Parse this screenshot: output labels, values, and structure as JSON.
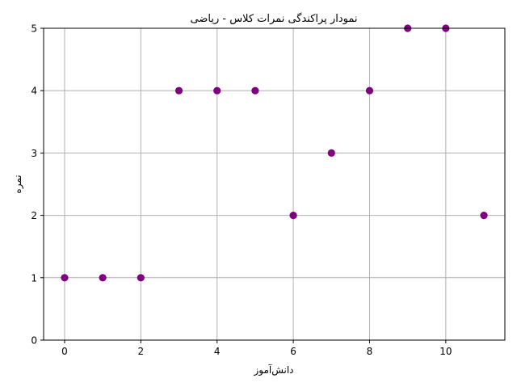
{
  "chart_data": {
    "type": "scatter",
    "title": "نمودار پراکندگی نمرات کلاس - ریاضی",
    "xlabel": "دانش‌آموز",
    "ylabel": "نمره",
    "x": [
      0,
      1,
      2,
      3,
      4,
      5,
      6,
      7,
      8,
      9,
      10,
      11
    ],
    "y": [
      1,
      1,
      1,
      4,
      4,
      4,
      2,
      3,
      4,
      5,
      5,
      2
    ],
    "xlim": [
      -0.55,
      11.55
    ],
    "ylim": [
      0,
      5
    ],
    "xticks": [
      0,
      2,
      4,
      6,
      8,
      10
    ],
    "yticks": [
      0,
      1,
      2,
      3,
      4,
      5
    ],
    "grid": true,
    "marker_color": "#800080",
    "grid_color": "#b0b0b0"
  }
}
